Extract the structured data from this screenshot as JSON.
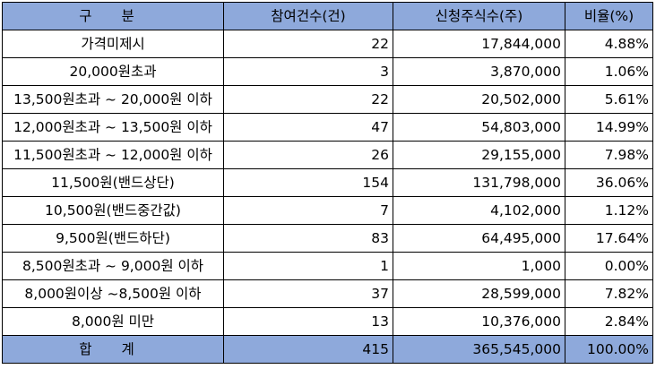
{
  "headers": [
    "구 분",
    "참여건수(건)",
    "신청주식수(주)",
    "비율(%)"
  ],
  "rows": [
    {
      "label": "가격미제시",
      "count": "22",
      "shares": "17,844,000",
      "ratio": "4.88%"
    },
    {
      "label": "20,000원초과",
      "count": "3",
      "shares": "3,870,000",
      "ratio": "1.06%"
    },
    {
      "label": "13,500원초과 ~ 20,000원 이하",
      "count": "22",
      "shares": "20,502,000",
      "ratio": "5.61%"
    },
    {
      "label": "12,000원초과 ~ 13,500원 이하",
      "count": "47",
      "shares": "54,803,000",
      "ratio": "14.99%"
    },
    {
      "label": "11,500원초과 ~ 12,000원 이하",
      "count": "26",
      "shares": "29,155,000",
      "ratio": "7.98%"
    },
    {
      "label": "11,500원(밴드상단)",
      "count": "154",
      "shares": "131,798,000",
      "ratio": "36.06%"
    },
    {
      "label": "10,500원(밴드중간값)",
      "count": "7",
      "shares": "4,102,000",
      "ratio": "1.12%"
    },
    {
      "label": "9,500원(밴드하단)",
      "count": "83",
      "shares": "64,495,000",
      "ratio": "17.64%"
    },
    {
      "label": "8,500원초과 ~ 9,000원 이하",
      "count": "1",
      "shares": "1,000",
      "ratio": "0.00%"
    },
    {
      "label": "8,000원이상 ~8,500원 이하",
      "count": "37",
      "shares": "28,599,000",
      "ratio": "7.82%"
    },
    {
      "label": "8,000원 미만",
      "count": "13",
      "shares": "10,376,000",
      "ratio": "2.84%"
    }
  ],
  "total": {
    "label": "합 계",
    "count": "415",
    "shares": "365,545,000",
    "ratio": "100.00%"
  }
}
